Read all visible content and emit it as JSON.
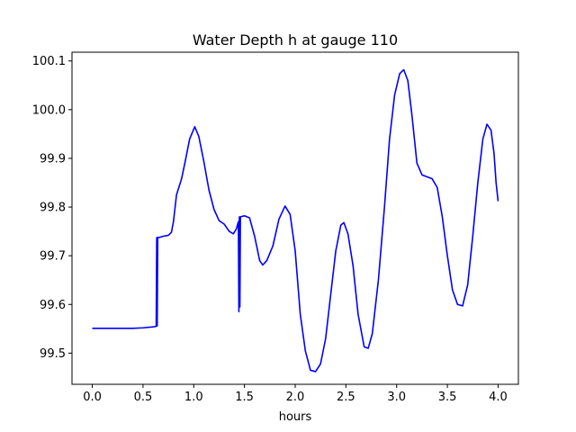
{
  "chart_data": {
    "type": "line",
    "title": "Water Depth h at gauge 110",
    "xlabel": "hours",
    "ylabel": "",
    "xlim": [
      -0.2,
      4.2
    ],
    "ylim": [
      99.436,
      100.118
    ],
    "x_ticks": [
      "0.0",
      "0.5",
      "1.0",
      "1.5",
      "2.0",
      "2.5",
      "3.0",
      "3.5",
      "4.0"
    ],
    "y_ticks": [
      "99.5",
      "99.6",
      "99.7",
      "99.8",
      "99.9",
      "100.0",
      "100.1"
    ],
    "grid": false,
    "legend": "none",
    "series": [
      {
        "color": "#0000ff",
        "points": [
          [
            0.0,
            99.551
          ],
          [
            0.1,
            99.551
          ],
          [
            0.2,
            99.551
          ],
          [
            0.3,
            99.551
          ],
          [
            0.4,
            99.551
          ],
          [
            0.5,
            99.552
          ],
          [
            0.6,
            99.554
          ],
          [
            0.63,
            99.555
          ],
          [
            0.635,
            99.737
          ],
          [
            0.64,
            99.556
          ],
          [
            0.645,
            99.738
          ],
          [
            0.65,
            99.737
          ],
          [
            0.7,
            99.74
          ],
          [
            0.75,
            99.742
          ],
          [
            0.78,
            99.748
          ],
          [
            0.8,
            99.77
          ],
          [
            0.83,
            99.825
          ],
          [
            0.88,
            99.858
          ],
          [
            0.92,
            99.898
          ],
          [
            0.96,
            99.94
          ],
          [
            1.01,
            99.965
          ],
          [
            1.05,
            99.945
          ],
          [
            1.1,
            99.893
          ],
          [
            1.15,
            99.835
          ],
          [
            1.2,
            99.795
          ],
          [
            1.25,
            99.772
          ],
          [
            1.3,
            99.765
          ],
          [
            1.35,
            99.75
          ],
          [
            1.39,
            99.745
          ],
          [
            1.42,
            99.755
          ],
          [
            1.44,
            99.77
          ],
          [
            1.445,
            99.585
          ],
          [
            1.45,
            99.78
          ],
          [
            1.455,
            99.595
          ],
          [
            1.46,
            99.78
          ],
          [
            1.5,
            99.782
          ],
          [
            1.55,
            99.778
          ],
          [
            1.6,
            99.74
          ],
          [
            1.65,
            99.69
          ],
          [
            1.68,
            99.681
          ],
          [
            1.72,
            99.69
          ],
          [
            1.78,
            99.72
          ],
          [
            1.84,
            99.775
          ],
          [
            1.9,
            99.802
          ],
          [
            1.95,
            99.785
          ],
          [
            2.0,
            99.71
          ],
          [
            2.05,
            99.58
          ],
          [
            2.1,
            99.505
          ],
          [
            2.15,
            99.465
          ],
          [
            2.2,
            99.462
          ],
          [
            2.25,
            99.478
          ],
          [
            2.3,
            99.53
          ],
          [
            2.35,
            99.62
          ],
          [
            2.4,
            99.71
          ],
          [
            2.45,
            99.763
          ],
          [
            2.48,
            99.768
          ],
          [
            2.52,
            99.745
          ],
          [
            2.57,
            99.68
          ],
          [
            2.62,
            99.58
          ],
          [
            2.68,
            99.513
          ],
          [
            2.72,
            99.51
          ],
          [
            2.76,
            99.54
          ],
          [
            2.82,
            99.65
          ],
          [
            2.88,
            99.8
          ],
          [
            2.93,
            99.94
          ],
          [
            2.98,
            100.03
          ],
          [
            3.03,
            100.074
          ],
          [
            3.07,
            100.082
          ],
          [
            3.11,
            100.06
          ],
          [
            3.15,
            99.99
          ],
          [
            3.2,
            99.89
          ],
          [
            3.25,
            99.866
          ],
          [
            3.3,
            99.862
          ],
          [
            3.35,
            99.858
          ],
          [
            3.4,
            99.84
          ],
          [
            3.45,
            99.78
          ],
          [
            3.5,
            99.7
          ],
          [
            3.55,
            99.63
          ],
          [
            3.6,
            99.6
          ],
          [
            3.65,
            99.597
          ],
          [
            3.7,
            99.64
          ],
          [
            3.75,
            99.74
          ],
          [
            3.8,
            99.85
          ],
          [
            3.85,
            99.94
          ],
          [
            3.89,
            99.97
          ],
          [
            3.93,
            99.958
          ],
          [
            3.96,
            99.91
          ],
          [
            3.98,
            99.85
          ],
          [
            4.0,
            99.812
          ]
        ]
      }
    ]
  }
}
